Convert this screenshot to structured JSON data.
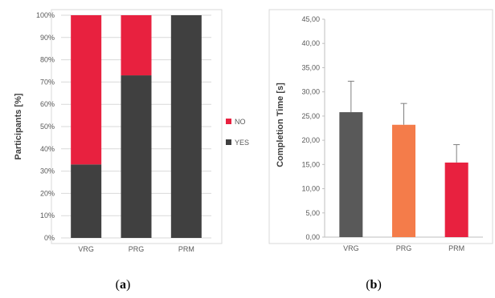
{
  "chart_data": [
    {
      "type": "bar",
      "stacked": true,
      "caption_letter": "a",
      "categories": [
        "VRG",
        "PRG",
        "PRM"
      ],
      "series": [
        {
          "name": "YES",
          "values": [
            33,
            73,
            100
          ],
          "color": "#404040"
        },
        {
          "name": "NO",
          "values": [
            67,
            27,
            0
          ],
          "color": "#e8213f"
        }
      ],
      "ylabel": "Participants [%]",
      "ylim": [
        0,
        100
      ],
      "yticks": [
        0,
        10,
        20,
        30,
        40,
        50,
        60,
        70,
        80,
        90,
        100
      ],
      "ytick_labels": [
        "0%",
        "10%",
        "20%",
        "30%",
        "40%",
        "50%",
        "60%",
        "70%",
        "80%",
        "90%",
        "100%"
      ],
      "legend_position": "right",
      "legend": [
        "NO",
        "YES"
      ],
      "grid": true
    },
    {
      "type": "bar",
      "caption_letter": "b",
      "categories": [
        "VRG",
        "PRG",
        "PRM"
      ],
      "values": [
        25.8,
        23.2,
        15.4
      ],
      "error": [
        6.4,
        4.4,
        3.7
      ],
      "colors": [
        "#595959",
        "#f47c4a",
        "#e8213f"
      ],
      "ylabel": "Completion Time [s]",
      "ylim": [
        0,
        45
      ],
      "yticks": [
        0,
        5,
        10,
        15,
        20,
        25,
        30,
        35,
        40,
        45
      ],
      "ytick_labels": [
        "0,00",
        "5,00",
        "10,00",
        "15,00",
        "20,00",
        "25,00",
        "30,00",
        "35,00",
        "40,00",
        "45,00"
      ],
      "grid": false
    }
  ]
}
